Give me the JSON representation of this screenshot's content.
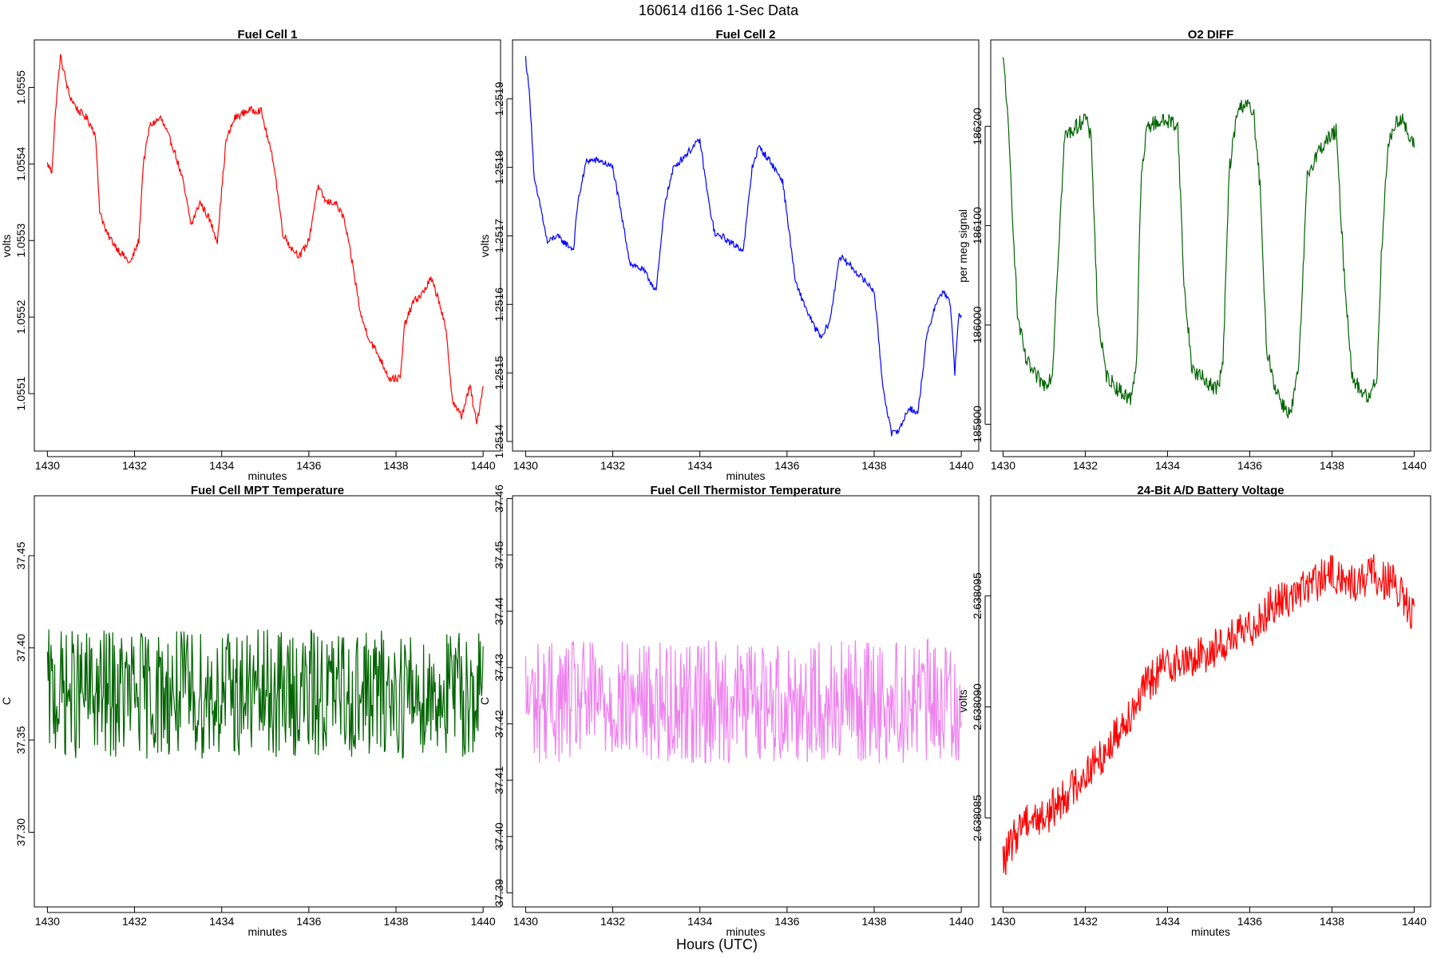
{
  "figure": {
    "title": "160614   d166   1-Sec Data",
    "xlabel": "Hours (UTC)"
  },
  "chart_data": [
    {
      "type": "line",
      "title": "Fuel Cell 1",
      "xlabel": "minutes",
      "ylabel": "volts",
      "color": "#ff0000",
      "xlim": [
        1429.7,
        1440.4
      ],
      "ylim": [
        1.055025,
        1.055562
      ],
      "xticks": [
        1430,
        1432,
        1434,
        1436,
        1438,
        1440
      ],
      "xtick_labels": [
        "1430",
        "1432",
        "1434",
        "1436",
        "1438",
        "1440"
      ],
      "yticks": [
        1.0551,
        1.0552,
        1.0553,
        1.0554,
        1.0555
      ],
      "ytick_labels": [
        "1.0551",
        "1.0552",
        "1.0553",
        "1.0554",
        "1.0555"
      ],
      "noise": 5e-06,
      "series": [
        {
          "x": [
            1430,
            1430.1,
            1430.2,
            1430.3,
            1430.5,
            1430.7,
            1430.9,
            1431.1,
            1431.2,
            1431.35,
            1431.6,
            1431.9,
            1432.1,
            1432.2,
            1432.35,
            1432.6,
            1432.9,
            1433.1,
            1433.3,
            1433.5,
            1433.7,
            1433.9,
            1434.1,
            1434.3,
            1434.6,
            1434.9,
            1435.2,
            1435.4,
            1435.6,
            1435.8,
            1436.0,
            1436.2,
            1436.4,
            1436.6,
            1436.8,
            1437.0,
            1437.2,
            1437.4,
            1437.6,
            1437.85,
            1438.1,
            1438.2,
            1438.4,
            1438.6,
            1438.8,
            1439.0,
            1439.15,
            1439.3,
            1439.5,
            1439.7,
            1439.85,
            1440.0
          ],
          "y": [
            1.0554,
            1.05539,
            1.05548,
            1.05554,
            1.05549,
            1.05547,
            1.05546,
            1.05544,
            1.05534,
            1.05531,
            1.05529,
            1.05527,
            1.0553,
            1.0554,
            1.05545,
            1.05546,
            1.05542,
            1.05538,
            1.05532,
            1.05535,
            1.05533,
            1.0553,
            1.05543,
            1.05546,
            1.05547,
            1.05547,
            1.0554,
            1.05531,
            1.05529,
            1.05528,
            1.0553,
            1.05537,
            1.05535,
            1.05535,
            1.05533,
            1.05527,
            1.0552,
            1.05517,
            1.05515,
            1.05512,
            1.05512,
            1.05519,
            1.05522,
            1.05523,
            1.05525,
            1.05522,
            1.05518,
            1.05509,
            1.05507,
            1.05511,
            1.05506,
            1.05511
          ]
        }
      ]
    },
    {
      "type": "line",
      "title": "Fuel Cell 2",
      "xlabel": "minutes",
      "ylabel": "volts",
      "color": "#0000ff",
      "xlim": [
        1429.7,
        1440.4
      ],
      "ylim": [
        1.251386,
        1.251986
      ],
      "xticks": [
        1430,
        1432,
        1434,
        1436,
        1438,
        1440
      ],
      "xtick_labels": [
        "1430",
        "1432",
        "1434",
        "1436",
        "1438",
        "1440"
      ],
      "yticks": [
        1.2514,
        1.2515,
        1.2516,
        1.2517,
        1.2518,
        1.2519
      ],
      "ytick_labels": [
        "1.2514",
        "1.2515",
        "1.2516",
        "1.2517",
        "1.2518",
        "1.2519"
      ],
      "noise": 5e-06,
      "series": [
        {
          "x": [
            1430,
            1430.1,
            1430.2,
            1430.35,
            1430.5,
            1430.7,
            1430.9,
            1431.1,
            1431.2,
            1431.4,
            1431.7,
            1432.0,
            1432.2,
            1432.4,
            1432.7,
            1433.0,
            1433.2,
            1433.4,
            1433.7,
            1434.0,
            1434.2,
            1434.35,
            1434.5,
            1434.7,
            1435.0,
            1435.2,
            1435.35,
            1435.6,
            1435.9,
            1436.2,
            1436.4,
            1436.6,
            1436.8,
            1437.0,
            1437.2,
            1437.4,
            1437.7,
            1438.0,
            1438.2,
            1438.4,
            1438.6,
            1438.8,
            1439.0,
            1439.2,
            1439.4,
            1439.6,
            1439.75,
            1439.85,
            1439.95,
            1440.0
          ],
          "y": [
            1.25196,
            1.2519,
            1.25178,
            1.25174,
            1.25169,
            1.2517,
            1.25169,
            1.25168,
            1.25175,
            1.25181,
            1.25181,
            1.2518,
            1.25173,
            1.25166,
            1.25165,
            1.25162,
            1.25175,
            1.2518,
            1.25182,
            1.25184,
            1.25175,
            1.2517,
            1.2517,
            1.25169,
            1.25168,
            1.2518,
            1.25183,
            1.25181,
            1.25178,
            1.25163,
            1.2516,
            1.25157,
            1.25155,
            1.25158,
            1.25167,
            1.25166,
            1.25164,
            1.25162,
            1.25148,
            1.25141,
            1.25142,
            1.25145,
            1.25144,
            1.25155,
            1.2516,
            1.25162,
            1.2516,
            1.2515,
            1.25159,
            1.25158
          ]
        }
      ]
    },
    {
      "type": "line",
      "title": "O2 DIFF",
      "xlabel": "",
      "ylabel": "per meg signal",
      "color": "#006400",
      "xlim": [
        1429.7,
        1440.4
      ],
      "ylim": [
        185873,
        186287
      ],
      "xticks": [
        1430,
        1432,
        1434,
        1436,
        1438,
        1440
      ],
      "xtick_labels": [
        "1430",
        "1432",
        "1434",
        "1436",
        "1438",
        "1440"
      ],
      "yticks": [
        185900,
        186000,
        186100,
        186200
      ],
      "ytick_labels": [
        "185900",
        "186000",
        "186100",
        "186200"
      ],
      "noise": 8,
      "series": [
        {
          "x": [
            1430,
            1430.05,
            1430.15,
            1430.35,
            1430.55,
            1430.75,
            1431.0,
            1431.2,
            1431.3,
            1431.5,
            1431.8,
            1432.0,
            1432.15,
            1432.3,
            1432.5,
            1432.8,
            1433.1,
            1433.25,
            1433.35,
            1433.5,
            1433.8,
            1434.1,
            1434.25,
            1434.4,
            1434.6,
            1434.9,
            1435.2,
            1435.35,
            1435.5,
            1435.7,
            1435.9,
            1436.1,
            1436.25,
            1436.4,
            1436.6,
            1436.8,
            1437.0,
            1437.2,
            1437.4,
            1437.6,
            1437.85,
            1438.1,
            1438.3,
            1438.5,
            1438.7,
            1438.9,
            1439.1,
            1439.2,
            1439.35,
            1439.5,
            1439.7,
            1439.85,
            1440.0
          ],
          "y": [
            186265,
            186250,
            186180,
            186010,
            185965,
            185950,
            185940,
            185950,
            186040,
            186190,
            186200,
            186210,
            186185,
            186010,
            185950,
            185935,
            185925,
            185965,
            186140,
            186200,
            186205,
            186205,
            186200,
            186040,
            185955,
            185945,
            185935,
            185960,
            186155,
            186215,
            186225,
            186210,
            186140,
            185980,
            185940,
            185920,
            185910,
            185960,
            186150,
            186170,
            186185,
            186195,
            186050,
            185945,
            185935,
            185925,
            185950,
            186070,
            186175,
            186200,
            186210,
            186190,
            186180
          ]
        }
      ]
    },
    {
      "type": "line",
      "title": "Fuel Cell MPT Temperature",
      "xlabel": "minutes",
      "ylabel": "C",
      "color": "#006400",
      "xlim": [
        1429.7,
        1440.4
      ],
      "ylim": [
        37.2595,
        37.4825
      ],
      "xticks": [
        1430,
        1432,
        1434,
        1436,
        1438,
        1440
      ],
      "xtick_labels": [
        "1430",
        "1432",
        "1434",
        "1436",
        "1438",
        "1440"
      ],
      "yticks": [
        37.3,
        37.35,
        37.4,
        37.45
      ],
      "ytick_labels": [
        "37.30",
        "37.35",
        "37.40",
        "37.45"
      ],
      "noise": 0.035,
      "series": [
        {
          "x": [
            1430,
            1440
          ],
          "y": [
            37.375,
            37.375
          ]
        }
      ]
    },
    {
      "type": "line",
      "title": "Fuel Cell Thermistor Temperature",
      "xlabel": "minutes",
      "ylabel": "C",
      "color": "#ee82ee",
      "xlim": [
        1429.7,
        1440.4
      ],
      "ylim": [
        37.3875,
        37.4605
      ],
      "xticks": [
        1430,
        1432,
        1434,
        1436,
        1438,
        1440
      ],
      "xtick_labels": [
        "1430",
        "1432",
        "1434",
        "1436",
        "1438",
        "1440"
      ],
      "yticks": [
        37.39,
        37.4,
        37.41,
        37.42,
        37.43,
        37.44,
        37.45,
        37.46
      ],
      "ytick_labels": [
        "37.39",
        "37.40",
        "37.41",
        "37.42",
        "37.43",
        "37.44",
        "37.45",
        "37.46"
      ],
      "noise": 0.011,
      "series": [
        {
          "x": [
            1430,
            1440
          ],
          "y": [
            37.424,
            37.424
          ]
        }
      ]
    },
    {
      "type": "line",
      "title": "24-Bit A/D Battery Voltage",
      "xlabel": "minutes",
      "ylabel": "volts",
      "color": "#ff0000",
      "xlim": [
        1429.7,
        1440.4
      ],
      "ylim": [
        2.638081,
        2.6380995
      ],
      "xticks": [
        1430,
        1432,
        1434,
        1436,
        1438,
        1440
      ],
      "xtick_labels": [
        "1430",
        "1432",
        "1434",
        "1436",
        "1438",
        "1440"
      ],
      "yticks": [
        2.638085,
        2.63809,
        2.638095
      ],
      "ytick_labels": [
        "2.638085",
        "2.638090",
        "2.638095"
      ],
      "noise": 9e-07,
      "series": [
        {
          "x": [
            1430,
            1430.5,
            1431,
            1431.5,
            1432,
            1432.5,
            1433,
            1433.5,
            1434,
            1434.5,
            1435,
            1435.5,
            1436,
            1436.5,
            1437,
            1437.5,
            1438,
            1438.5,
            1439,
            1439.5,
            1440
          ],
          "y": [
            2.638083,
            2.638085,
            2.638085,
            2.638086,
            2.638087,
            2.638088,
            2.6380895,
            2.638091,
            2.638092,
            2.638092,
            2.6380925,
            2.638093,
            2.6380935,
            2.6380945,
            2.638095,
            2.6380955,
            2.638096,
            2.6380955,
            2.638096,
            2.6380955,
            2.638094
          ]
        }
      ]
    }
  ]
}
